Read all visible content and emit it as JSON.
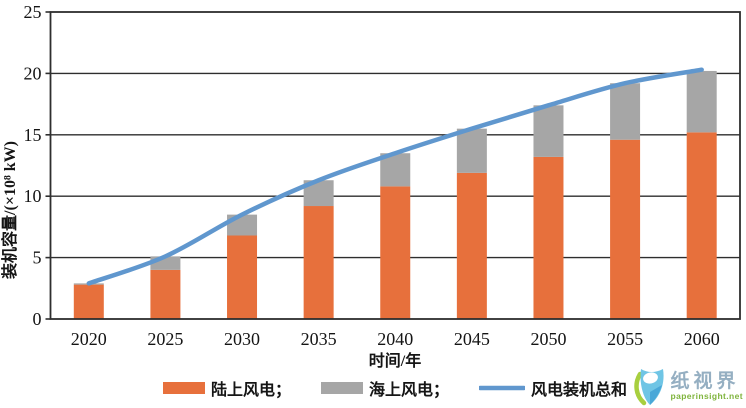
{
  "chart_data": {
    "type": "bar",
    "subtype": "stacked-bars-with-total-line",
    "categories": [
      "2020",
      "2025",
      "2030",
      "2035",
      "2040",
      "2045",
      "2050",
      "2055",
      "2060"
    ],
    "series": [
      {
        "name": "陆上风电",
        "kind": "bar",
        "color": "#E7703C",
        "values": [
          2.8,
          4.0,
          6.8,
          9.2,
          10.8,
          11.9,
          13.2,
          14.6,
          15.2
        ]
      },
      {
        "name": "海上风电",
        "kind": "bar",
        "color": "#A6A6A6",
        "values": [
          0.1,
          1.1,
          1.7,
          2.1,
          2.7,
          3.6,
          4.2,
          4.6,
          5.0
        ]
      },
      {
        "name": "风电装机总和",
        "kind": "line",
        "color": "#6097CE",
        "values": [
          2.9,
          5.1,
          8.5,
          11.3,
          13.5,
          15.5,
          17.4,
          19.2,
          20.3
        ]
      }
    ],
    "xlabel": "时间/年",
    "ylabel": "装机容量/(×10⁸ kW)",
    "ylim": [
      0,
      25
    ],
    "ytick_step": 5,
    "grid": "horizontal",
    "plot_border": "box",
    "legend_position": "bottom",
    "axis_color": "#2E2E2E"
  },
  "legend": {
    "items": [
      {
        "label": "陆上风电；",
        "swatch": "bar",
        "color": "#E7703C"
      },
      {
        "label": "海上风电；",
        "swatch": "bar",
        "color": "#A6A6A6"
      },
      {
        "label": "风电装机总和",
        "swatch": "line",
        "color": "#6097CE"
      }
    ]
  },
  "watermark": {
    "name": "纸视界",
    "url_text": "paperinsight.net",
    "logo_blue": "#6FC5E5",
    "logo_dark_blue": "#4AA8D8",
    "logo_green": "#A8CF3F"
  }
}
